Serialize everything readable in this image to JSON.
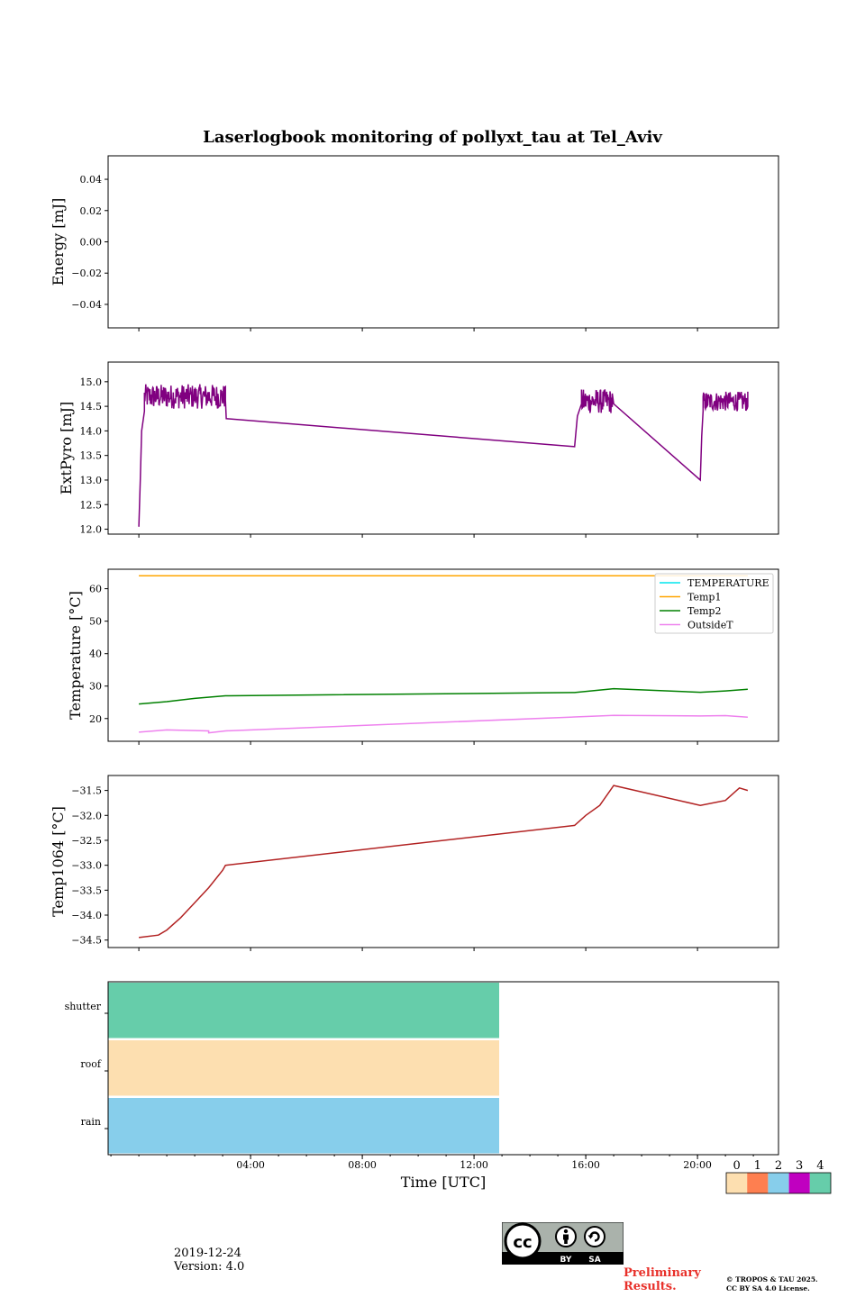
{
  "figure": {
    "title": "Laserlogbook monitoring of pollyxt_tau at Tel_Aviv",
    "date": "2019-12-24",
    "version": "Version: 4.0",
    "preliminary": [
      "Preliminary",
      "Results."
    ],
    "copyright": [
      "© TROPOS & TAU 2025.",
      "CC BY SA 4.0 License."
    ],
    "license_badge": {
      "icon_names": [
        "cc-icon",
        "by-person-icon",
        "sa-recycle-icon"
      ],
      "labels": [
        "BY",
        "SA"
      ]
    }
  },
  "chart_data": [
    {
      "type": "line",
      "ylabel": "Energy [mJ]",
      "ylim": [
        -0.055,
        0.055
      ],
      "yticks": [
        0.04,
        0.02,
        0.0,
        -0.02,
        -0.04
      ],
      "ytick_labels": [
        "0.04",
        "0.02",
        "0.00",
        "−0.02",
        "−0.04"
      ],
      "x_range_hours": [
        -1.1,
        22.9
      ],
      "series": []
    },
    {
      "type": "line",
      "ylabel": "ExtPyro [mJ]",
      "ylim": [
        11.9,
        15.4
      ],
      "yticks": [
        12.0,
        12.5,
        13.0,
        13.5,
        14.0,
        14.5,
        15.0
      ],
      "ytick_labels": [
        "12.0",
        "12.5",
        "13.0",
        "13.5",
        "14.0",
        "14.5",
        "15.0"
      ],
      "x_range_hours": [
        -1.1,
        22.9
      ],
      "series": [
        {
          "color": "#800080",
          "noisy_segments": [
            {
              "x": [
                0.2,
                3.1
              ],
              "level": 14.7,
              "amp": 0.25
            },
            {
              "x": [
                15.85,
                16.95
              ],
              "level": 14.6,
              "amp": 0.25
            },
            {
              "x": [
                20.2,
                21.8
              ],
              "level": 14.6,
              "amp": 0.2
            }
          ],
          "points": [
            [
              0.0,
              12.05
            ],
            [
              0.05,
              13.0
            ],
            [
              0.1,
              14.0
            ],
            [
              0.2,
              14.4
            ],
            [
              3.1,
              14.9
            ],
            [
              3.13,
              14.25
            ],
            [
              15.6,
              13.68
            ],
            [
              15.7,
              14.3
            ],
            [
              15.85,
              14.55
            ],
            [
              16.95,
              14.5
            ],
            [
              17.0,
              14.55
            ],
            [
              20.1,
              13.0
            ],
            [
              20.15,
              13.9
            ],
            [
              20.2,
              14.4
            ],
            [
              21.8,
              14.5
            ]
          ]
        }
      ]
    },
    {
      "type": "line",
      "ylabel": "Temperature [°C]",
      "ylim": [
        13,
        66
      ],
      "yticks": [
        20,
        30,
        40,
        50,
        60
      ],
      "ytick_labels": [
        "20",
        "30",
        "40",
        "50",
        "60"
      ],
      "x_range_hours": [
        -1.1,
        22.9
      ],
      "legend": {
        "loc": "upper right",
        "entries": [
          "TEMPERATURE",
          "Temp1",
          "Temp2",
          "OutsideT"
        ]
      },
      "series": [
        {
          "name": "TEMPERATURE",
          "color": "#00e5ee",
          "points": []
        },
        {
          "name": "Temp1",
          "color": "#ffa500",
          "points": [
            [
              0.0,
              64.0
            ],
            [
              21.8,
              64.0
            ]
          ]
        },
        {
          "name": "Temp2",
          "color": "#008000",
          "points": [
            [
              0.0,
              24.5
            ],
            [
              1.0,
              25.2
            ],
            [
              2.0,
              26.2
            ],
            [
              3.1,
              27.0
            ],
            [
              15.6,
              28.0
            ],
            [
              17.0,
              29.2
            ],
            [
              20.1,
              28.1
            ],
            [
              21.0,
              28.5
            ],
            [
              21.8,
              29.0
            ]
          ]
        },
        {
          "name": "OutsideT",
          "color": "#ee82ee",
          "points": [
            [
              0.0,
              15.8
            ],
            [
              1.0,
              16.5
            ],
            [
              2.5,
              16.2
            ],
            [
              2.5,
              15.6
            ],
            [
              3.1,
              16.2
            ],
            [
              15.6,
              20.5
            ],
            [
              17.0,
              21.0
            ],
            [
              20.1,
              20.8
            ],
            [
              21.0,
              20.9
            ],
            [
              21.8,
              20.4
            ]
          ]
        }
      ]
    },
    {
      "type": "line",
      "ylabel": "Temp1064 [°C]",
      "ylim": [
        -34.65,
        -31.2
      ],
      "yticks": [
        -34.5,
        -34.0,
        -33.5,
        -33.0,
        -32.5,
        -32.0,
        -31.5
      ],
      "ytick_labels": [
        "−34.5",
        "−34.0",
        "−33.5",
        "−33.0",
        "−32.5",
        "−32.0",
        "−31.5"
      ],
      "x_range_hours": [
        -1.1,
        22.9
      ],
      "series": [
        {
          "color": "#b22222",
          "points": [
            [
              0.0,
              -34.45
            ],
            [
              0.7,
              -34.4
            ],
            [
              1.0,
              -34.3
            ],
            [
              1.5,
              -34.05
            ],
            [
              2.0,
              -33.75
            ],
            [
              2.5,
              -33.45
            ],
            [
              3.0,
              -33.1
            ],
            [
              3.1,
              -33.0
            ],
            [
              15.6,
              -32.2
            ],
            [
              16.0,
              -32.0
            ],
            [
              16.5,
              -31.8
            ],
            [
              17.0,
              -31.4
            ],
            [
              20.1,
              -31.8
            ],
            [
              21.0,
              -31.7
            ],
            [
              21.5,
              -31.45
            ],
            [
              21.8,
              -31.5
            ]
          ]
        }
      ]
    },
    {
      "type": "heatmap",
      "xlabel": "Time [UTC]",
      "x_range_hours": [
        -1.1,
        22.9
      ],
      "xticks_hours": [
        4,
        8,
        12,
        16,
        20
      ],
      "xtick_labels": [
        "04:00",
        "08:00",
        "12:00",
        "16:00",
        "20:00"
      ],
      "rows": [
        "shutter",
        "roof",
        "rain"
      ],
      "cells": [
        {
          "row": "shutter",
          "x": [
            -1.1,
            12.9
          ],
          "value": 4
        },
        {
          "row": "roof",
          "x": [
            -1.1,
            12.9
          ],
          "value": 0
        },
        {
          "row": "rain",
          "x": [
            -1.1,
            12.9
          ],
          "value": 2
        }
      ],
      "colorbar": {
        "labels": [
          "0",
          "1",
          "2",
          "3",
          "4"
        ],
        "colors": [
          "#fddfb0",
          "#fe7f50",
          "#87ceeb",
          "#c000c0",
          "#66cdaa"
        ]
      }
    }
  ]
}
